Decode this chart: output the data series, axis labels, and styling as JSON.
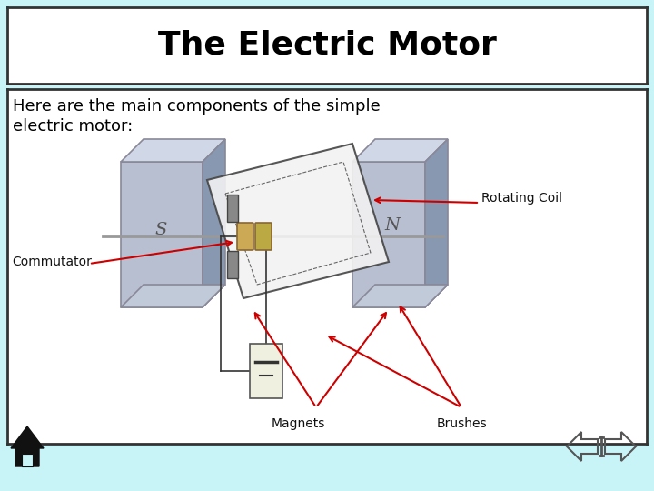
{
  "title": "The Electric Motor",
  "subtitle_line1": "Here are the main components of the simple",
  "subtitle_line2": "electric motor:",
  "bg_color": "#c8f4f8",
  "title_bg": "#ffffff",
  "content_bg": "#ffffff",
  "title_font_size": 26,
  "subtitle_font_size": 13,
  "label_font_size": 10,
  "labels": {
    "rotating_coil": "Rotating Coil",
    "commutator": "Commutator",
    "magnets": "Magnets",
    "brushes": "Brushes"
  },
  "arrow_color": "#cc0000",
  "label_color": "#111111",
  "mag_face": "#b8bfd0",
  "mag_top": "#d0d8e8",
  "mag_side": "#8898b0",
  "mag_bot": "#c0cad8",
  "mag_edge": "#888898"
}
